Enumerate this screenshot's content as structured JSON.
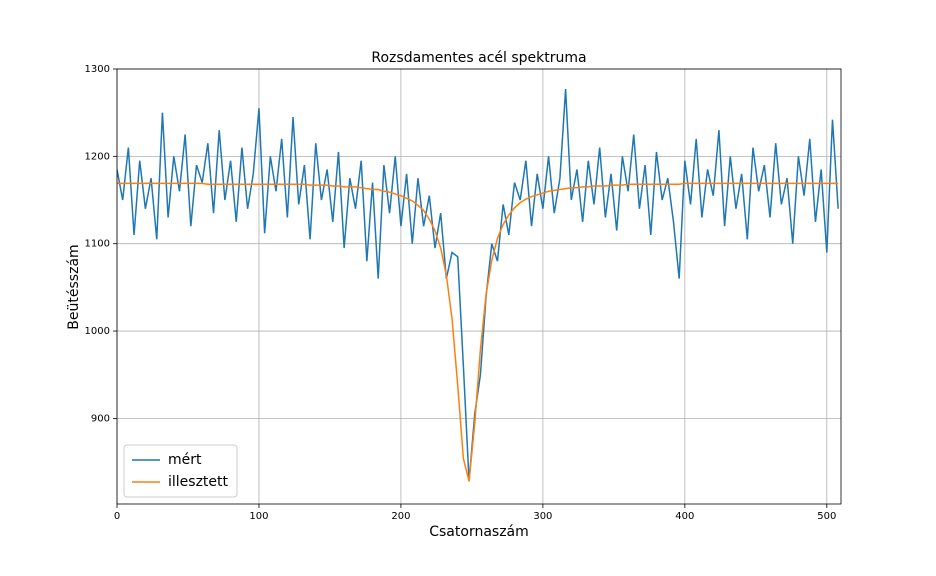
{
  "chart_data": {
    "type": "line",
    "title": "Rozsdamentes acél spektruma",
    "xlabel": "Csatornaszám",
    "ylabel": "Beütésszám",
    "x": [
      0,
      4,
      8,
      12,
      16,
      20,
      24,
      28,
      32,
      36,
      40,
      44,
      48,
      52,
      56,
      60,
      64,
      68,
      72,
      76,
      80,
      84,
      88,
      92,
      96,
      100,
      104,
      108,
      112,
      116,
      120,
      124,
      128,
      132,
      136,
      140,
      144,
      148,
      152,
      156,
      160,
      164,
      168,
      172,
      176,
      180,
      184,
      188,
      192,
      196,
      200,
      204,
      208,
      212,
      216,
      220,
      224,
      228,
      232,
      236,
      240,
      244,
      248,
      252,
      256,
      260,
      264,
      268,
      272,
      276,
      280,
      284,
      288,
      292,
      296,
      300,
      304,
      308,
      312,
      316,
      320,
      324,
      328,
      332,
      336,
      340,
      344,
      348,
      352,
      356,
      360,
      364,
      368,
      372,
      376,
      380,
      384,
      388,
      392,
      396,
      400,
      404,
      408,
      412,
      416,
      420,
      424,
      428,
      432,
      436,
      440,
      444,
      448,
      452,
      456,
      460,
      464,
      468,
      472,
      476,
      480,
      484,
      488,
      492,
      496,
      500,
      504,
      508
    ],
    "series": [
      {
        "name": "mért",
        "color": "#1f77b4",
        "values": [
          1185,
          1150,
          1210,
          1110,
          1195,
          1140,
          1175,
          1105,
          1250,
          1130,
          1200,
          1160,
          1225,
          1120,
          1190,
          1170,
          1215,
          1135,
          1230,
          1150,
          1195,
          1125,
          1210,
          1140,
          1180,
          1255,
          1112,
          1200,
          1160,
          1220,
          1130,
          1245,
          1145,
          1190,
          1105,
          1215,
          1150,
          1185,
          1125,
          1205,
          1095,
          1175,
          1140,
          1195,
          1080,
          1170,
          1060,
          1190,
          1135,
          1200,
          1120,
          1180,
          1100,
          1175,
          1120,
          1155,
          1095,
          1135,
          1060,
          1090,
          1085,
          960,
          828,
          905,
          950,
          1040,
          1100,
          1080,
          1145,
          1110,
          1170,
          1150,
          1195,
          1120,
          1180,
          1140,
          1200,
          1135,
          1175,
          1277,
          1150,
          1185,
          1125,
          1195,
          1145,
          1210,
          1130,
          1180,
          1115,
          1200,
          1160,
          1225,
          1140,
          1190,
          1110,
          1205,
          1150,
          1175,
          1125,
          1060,
          1195,
          1145,
          1220,
          1130,
          1185,
          1155,
          1230,
          1120,
          1200,
          1140,
          1180,
          1105,
          1210,
          1160,
          1190,
          1130,
          1215,
          1145,
          1175,
          1100,
          1200,
          1155,
          1220,
          1125,
          1185,
          1090,
          1242,
          1140
        ]
      },
      {
        "name": "illesztett",
        "color": "#ff7f0e",
        "values": [
          1169,
          1169,
          1169,
          1169,
          1169,
          1169,
          1169,
          1169,
          1169,
          1169,
          1169,
          1169,
          1169,
          1169,
          1169,
          1169,
          1168,
          1168,
          1168,
          1168,
          1168,
          1168,
          1168,
          1168,
          1168,
          1168,
          1168,
          1168,
          1168,
          1168,
          1168,
          1168,
          1168,
          1168,
          1167,
          1167,
          1167,
          1167,
          1166,
          1166,
          1165,
          1165,
          1165,
          1164,
          1163,
          1162,
          1162,
          1160,
          1159,
          1157,
          1155,
          1152,
          1149,
          1144,
          1138,
          1128,
          1115,
          1095,
          1064,
          1014,
          938,
          854,
          828,
          894,
          979,
          1042,
          1081,
          1106,
          1122,
          1133,
          1141,
          1147,
          1151,
          1154,
          1156,
          1158,
          1160,
          1161,
          1162,
          1163,
          1164,
          1164,
          1165,
          1165,
          1166,
          1166,
          1166,
          1167,
          1167,
          1167,
          1168,
          1168,
          1168,
          1168,
          1168,
          1168,
          1168,
          1168,
          1168,
          1168,
          1169,
          1169,
          1169,
          1169,
          1169,
          1169,
          1169,
          1169,
          1169,
          1169,
          1169,
          1169,
          1169,
          1169,
          1169,
          1169,
          1169,
          1169,
          1169,
          1169,
          1169,
          1169,
          1169,
          1169,
          1169,
          1169,
          1169,
          1169
        ]
      }
    ],
    "xlim": [
      0,
      510
    ],
    "ylim": [
      802,
      1300
    ],
    "xticks": [
      0,
      100,
      200,
      300,
      400,
      500
    ],
    "yticks": [
      900,
      1000,
      1100,
      1200,
      1300
    ],
    "grid": true,
    "legend": "lower left"
  }
}
